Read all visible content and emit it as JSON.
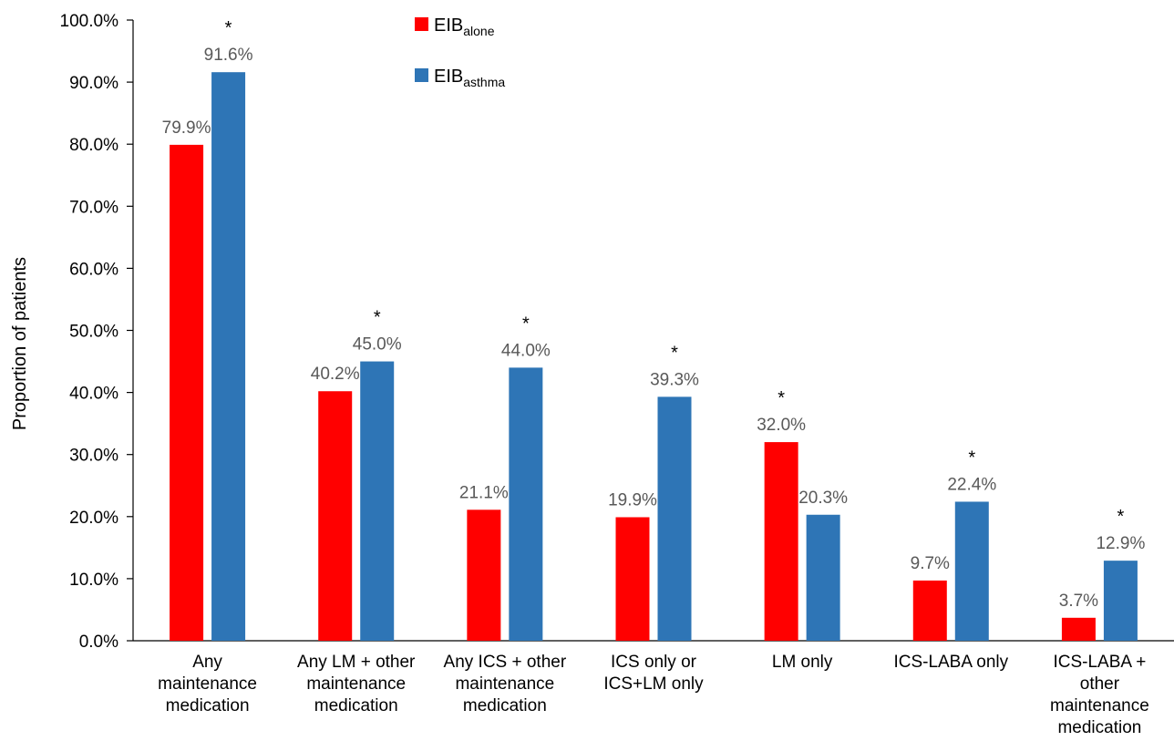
{
  "chart_data": {
    "type": "bar",
    "ylabel": "Proportion of patients",
    "xlabel": "",
    "ylim": [
      0,
      100
    ],
    "y_ticks": [
      "0.0%",
      "10.0%",
      "20.0%",
      "30.0%",
      "40.0%",
      "50.0%",
      "60.0%",
      "70.0%",
      "80.0%",
      "90.0%",
      "100.0%"
    ],
    "grid": false,
    "legend_position": "top-center",
    "categories": [
      [
        "Any",
        "maintenance",
        "medication"
      ],
      [
        "Any LM + other",
        "maintenance",
        "medication"
      ],
      [
        "Any ICS + other",
        "maintenance",
        "medication"
      ],
      [
        "ICS only or",
        "ICS+LM only"
      ],
      [
        "LM only"
      ],
      [
        "ICS-LABA only"
      ],
      [
        "ICS-LABA +",
        "other",
        "maintenance",
        "medication"
      ]
    ],
    "series": [
      {
        "name": "EIB",
        "name_subscript": "alone",
        "color": "#ff0000",
        "values": [
          79.9,
          40.2,
          21.1,
          19.9,
          32.0,
          9.7,
          3.7
        ],
        "labels": [
          "79.9%",
          "40.2%",
          "21.1%",
          "19.9%",
          "32.0%",
          "9.7%",
          "3.7%"
        ],
        "significant": [
          false,
          false,
          false,
          false,
          true,
          false,
          false
        ]
      },
      {
        "name": "EIB",
        "name_subscript": "asthma",
        "color": "#2e75b6",
        "values": [
          91.6,
          45.0,
          44.0,
          39.3,
          20.3,
          22.4,
          12.9
        ],
        "labels": [
          "91.6%",
          "45.0%",
          "44.0%",
          "39.3%",
          "20.3%",
          "22.4%",
          "12.9%"
        ],
        "significant": [
          true,
          true,
          true,
          true,
          false,
          true,
          true
        ]
      }
    ],
    "significance_marker": "*"
  }
}
